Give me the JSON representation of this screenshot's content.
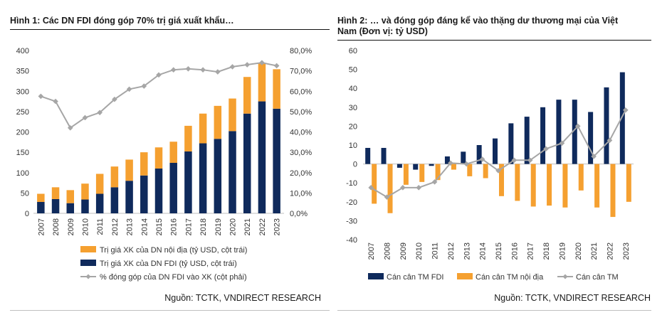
{
  "left": {
    "title": "Hình 1: Các DN FDI đóng góp 70% trị giá xuất khẩu…",
    "source": "Nguồn: TCTK, VNDIRECT RESEARCH",
    "colors": {
      "domestic": "#f5a030",
      "fdi": "#0f2a5c",
      "share": "#a6a6a6"
    },
    "chart_data": {
      "type": "bar",
      "title": "Hình 1: Các DN FDI đóng góp 70% trị giá xuất khẩu…",
      "categories": [
        "2007",
        "2008",
        "2009",
        "2010",
        "2011",
        "2012",
        "2013",
        "2014",
        "2015",
        "2016",
        "2017",
        "2018",
        "2019",
        "2020",
        "2021",
        "2022",
        "2023"
      ],
      "series": [
        {
          "name": "Trị giá XK của DN FDI (tỷ USD, cột trái)",
          "axis": "left",
          "kind": "stacked-bar",
          "values": [
            28,
            35,
            25,
            34,
            48,
            64,
            80,
            93,
            110,
            124,
            152,
            172,
            183,
            202,
            245,
            275,
            257
          ]
        },
        {
          "name": "Trị giá XK của DN nội địa (tỷ USD, cột trái)",
          "axis": "left",
          "kind": "stacked-bar",
          "values": [
            20,
            29,
            32,
            39,
            49,
            51,
            52,
            57,
            52,
            52,
            63,
            73,
            81,
            80,
            90,
            95,
            97
          ]
        },
        {
          "name": "% đóng góp của DN FDI vào XK (cột phải)",
          "axis": "right",
          "kind": "line",
          "values": [
            57.5,
            55,
            42,
            47,
            49.5,
            56,
            61,
            62.5,
            68,
            70.5,
            71,
            70.5,
            69.5,
            72,
            73,
            74,
            72.5
          ]
        }
      ],
      "ylim": [
        0,
        400
      ],
      "yticks": [
        "0",
        "50",
        "100",
        "150",
        "200",
        "250",
        "300",
        "350",
        "400"
      ],
      "y2lim": [
        0,
        80
      ],
      "y2ticks": [
        "0,0%",
        "10,0%",
        "20,0%",
        "30,0%",
        "40,0%",
        "50,0%",
        "60,0%",
        "70,0%",
        "80,0%"
      ],
      "legend": [
        "Trị giá XK của DN nội địa (tỷ USD, cột trái)",
        "Trị giá XK của DN FDI (tỷ USD, cột trái)",
        "% đóng góp của DN FDI vào XK (cột phải)"
      ],
      "legend_position": "bottom"
    }
  },
  "right": {
    "title": "Hình 2: … và đóng góp đáng kể vào thặng dư thương mại của Việt Nam (Đơn vị: tỷ USD)",
    "title_line1": "Hình 2: … và đóng góp đáng kể vào thặng dư thương mại của Việt",
    "title_line2": "Nam (Đơn vị: tỷ USD)",
    "source": "Nguồn: TCTK, VNDIRECT RESEARCH",
    "colors": {
      "fdi": "#0f2a5c",
      "domestic": "#f5a030",
      "total": "#a6a6a6"
    },
    "chart_data": {
      "type": "bar",
      "title": "Hình 2: … và đóng góp đáng kể vào thặng dư thương mại của Việt Nam (Đơn vị: tỷ USD)",
      "categories": [
        "2007",
        "2008",
        "2009",
        "2010",
        "2011",
        "2012",
        "2013",
        "2014",
        "2015",
        "2016",
        "2017",
        "2018",
        "2019",
        "2020",
        "2021",
        "2022",
        "2023"
      ],
      "series": [
        {
          "name": "Cán cân TM FDI",
          "kind": "bar",
          "values": [
            8.5,
            8.5,
            -2,
            -3,
            -1,
            4,
            6.5,
            10,
            13.5,
            21.5,
            25,
            30,
            34,
            34,
            27.5,
            40.5,
            48.5
          ]
        },
        {
          "name": "Cán cân TM nội địa",
          "kind": "bar",
          "values": [
            -21,
            -26,
            -11,
            -9.5,
            -8.5,
            -3,
            -6.5,
            -7.5,
            -17,
            -19.5,
            -22.5,
            -22,
            -23,
            -14,
            -23,
            -28,
            -20
          ]
        },
        {
          "name": "Cán cân TM",
          "kind": "line",
          "values": [
            -12.5,
            -17.5,
            -12.5,
            -12.5,
            -9.5,
            0.5,
            0,
            2.5,
            -3.5,
            2,
            2,
            8,
            11,
            20,
            4,
            12.5,
            28.5
          ]
        }
      ],
      "ylim": [
        -40,
        60
      ],
      "yticks": [
        "-40",
        "-30",
        "-20",
        "-10",
        "0",
        "10",
        "20",
        "30",
        "40",
        "50",
        "60"
      ],
      "legend": [
        "Cán cân TM FDI",
        "Cán cân TM nội địa",
        "Cán cân TM"
      ],
      "legend_position": "bottom"
    }
  }
}
